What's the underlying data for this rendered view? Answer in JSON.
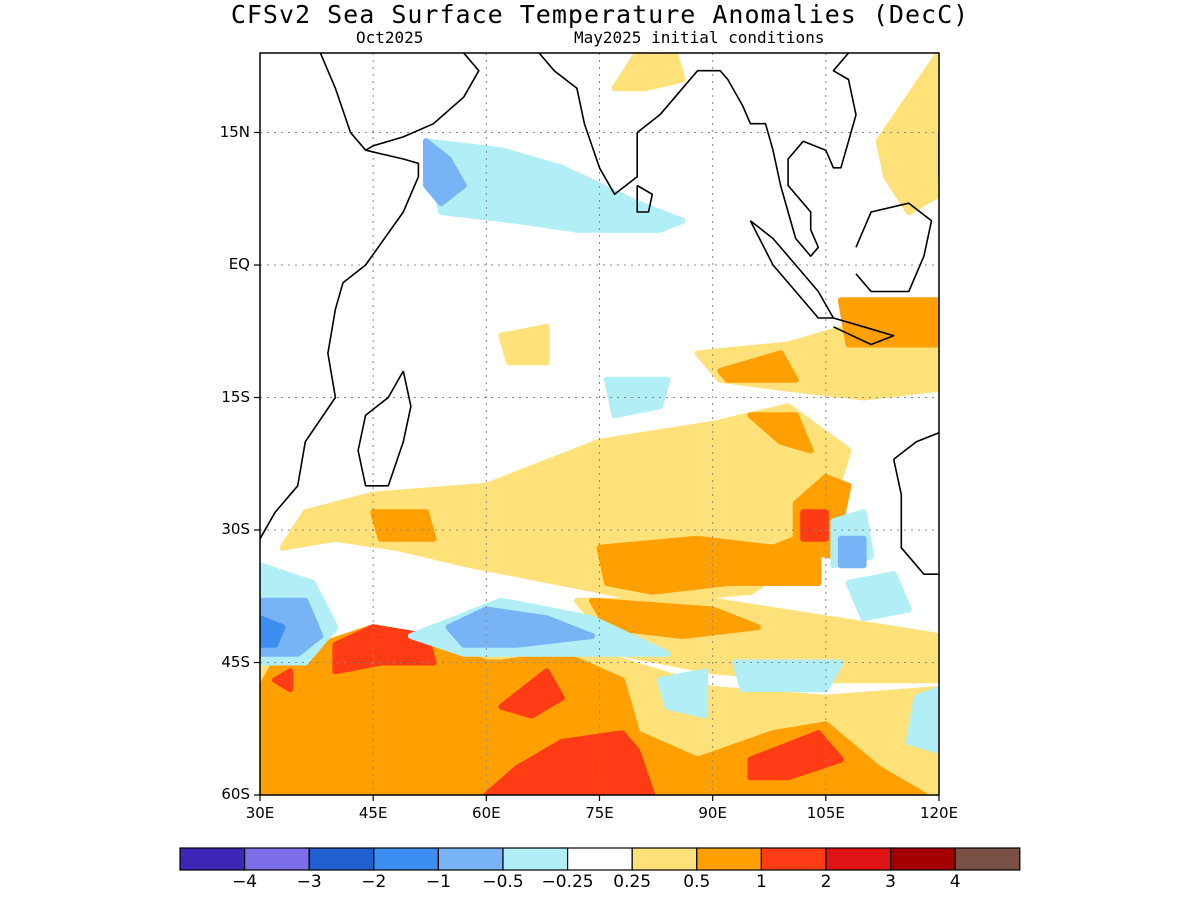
{
  "title": "CFSv2 Sea Surface Temperature Anomalies (DecC)",
  "subtitle_left": "Oct2025",
  "subtitle_right": "May2025 initial conditions",
  "lat_ticks": [
    {
      "label": "15N",
      "lat": 15
    },
    {
      "label": "EQ",
      "lat": 0
    },
    {
      "label": "15S",
      "lat": -15
    },
    {
      "label": "30S",
      "lat": -30
    },
    {
      "label": "45S",
      "lat": -45
    },
    {
      "label": "60S",
      "lat": -60
    }
  ],
  "lon_ticks": [
    {
      "label": "30E",
      "lon": 30
    },
    {
      "label": "45E",
      "lon": 45
    },
    {
      "label": "60E",
      "lon": 60
    },
    {
      "label": "75E",
      "lon": 75
    },
    {
      "label": "90E",
      "lon": 90
    },
    {
      "label": "105E",
      "lon": 105
    },
    {
      "label": "120E",
      "lon": 120
    }
  ],
  "map_extent": {
    "lon_min": 30,
    "lon_max": 120,
    "lat_min": -60,
    "lat_max": 24
  },
  "colorbar": {
    "colors": [
      "#3b26b5",
      "#7b6ee8",
      "#1f5fd0",
      "#3c8ff0",
      "#78b4f5",
      "#b2eef5",
      "#ffffff",
      "#ffe17a",
      "#ffa000",
      "#ff3c14",
      "#e01414",
      "#a50000",
      "#7a5046"
    ],
    "labels": [
      "−4",
      "−3",
      "−2",
      "−1",
      "−0.5",
      "−0.25",
      "0.25",
      "0.5",
      "1",
      "2",
      "3",
      "4"
    ]
  },
  "anomaly_regions": [
    {
      "level": "0.5",
      "color": "#ffe17a",
      "points": [
        [
          45,
          -26
        ],
        [
          60,
          -25
        ],
        [
          75,
          -20
        ],
        [
          90,
          -18
        ],
        [
          100,
          -16
        ],
        [
          108,
          -21
        ],
        [
          104,
          -32
        ],
        [
          95,
          -37
        ],
        [
          82,
          -38
        ],
        [
          70,
          -36
        ],
        [
          58,
          -34
        ],
        [
          48,
          -32
        ],
        [
          40,
          -31
        ],
        [
          33,
          -32
        ],
        [
          36,
          -28
        ]
      ]
    },
    {
      "level": "0.5",
      "color": "#ffe17a",
      "points": [
        [
          88,
          -10
        ],
        [
          100,
          -9
        ],
        [
          112,
          -6
        ],
        [
          120,
          -5
        ],
        [
          120,
          -14
        ],
        [
          110,
          -15
        ],
        [
          100,
          -14
        ],
        [
          91,
          -13
        ]
      ]
    },
    {
      "level": "0.5",
      "color": "#ffe17a",
      "points": [
        [
          112,
          14
        ],
        [
          120,
          24
        ],
        [
          120,
          8
        ],
        [
          116,
          6
        ],
        [
          113,
          10
        ]
      ]
    },
    {
      "level": "0.5",
      "color": "#ffe17a",
      "points": [
        [
          72,
          -38
        ],
        [
          90,
          -38
        ],
        [
          105,
          -40
        ],
        [
          120,
          -42
        ],
        [
          120,
          -47
        ],
        [
          105,
          -47
        ],
        [
          90,
          -46
        ],
        [
          78,
          -44
        ]
      ]
    },
    {
      "level": "0.5",
      "color": "#ffe17a",
      "points": [
        [
          30,
          -44
        ],
        [
          45,
          -42
        ],
        [
          60,
          -44
        ],
        [
          75,
          -44
        ],
        [
          90,
          -48
        ],
        [
          105,
          -49
        ],
        [
          120,
          -48
        ],
        [
          120,
          -60
        ],
        [
          30,
          -60
        ]
      ]
    },
    {
      "level": "0.5",
      "color": "#ffe17a",
      "points": [
        [
          62,
          -8
        ],
        [
          68,
          -7
        ],
        [
          68,
          -11
        ],
        [
          63,
          -11
        ]
      ]
    },
    {
      "level": "0.5",
      "color": "#ffe17a",
      "points": [
        [
          77,
          20
        ],
        [
          80,
          24
        ],
        [
          85,
          24
        ],
        [
          86,
          21
        ],
        [
          81,
          20
        ]
      ]
    },
    {
      "level": "1",
      "color": "#ffa000",
      "points": [
        [
          75,
          -32
        ],
        [
          88,
          -31
        ],
        [
          98,
          -32
        ],
        [
          104,
          -30
        ],
        [
          104,
          -36
        ],
        [
          92,
          -36
        ],
        [
          82,
          -37
        ],
        [
          76,
          -36
        ]
      ]
    },
    {
      "level": "1",
      "color": "#ffa000",
      "points": [
        [
          101,
          -27
        ],
        [
          105,
          -24
        ],
        [
          108,
          -25
        ],
        [
          106,
          -33
        ],
        [
          101,
          -32
        ]
      ]
    },
    {
      "level": "1",
      "color": "#ffa000",
      "points": [
        [
          95,
          -17
        ],
        [
          101,
          -17
        ],
        [
          103,
          -21
        ],
        [
          99,
          -20
        ]
      ]
    },
    {
      "level": "1",
      "color": "#ffa000",
      "points": [
        [
          91,
          -12
        ],
        [
          99,
          -10
        ],
        [
          101,
          -13
        ],
        [
          92,
          -13
        ]
      ]
    },
    {
      "level": "1",
      "color": "#ffa000",
      "points": [
        [
          107,
          -4
        ],
        [
          120,
          -4
        ],
        [
          120,
          -9
        ],
        [
          108,
          -9
        ]
      ]
    },
    {
      "level": "1",
      "color": "#ffa000",
      "points": [
        [
          45,
          -28
        ],
        [
          52,
          -28
        ],
        [
          53,
          -31
        ],
        [
          46,
          -31
        ]
      ]
    },
    {
      "level": "1",
      "color": "#ffa000",
      "points": [
        [
          74,
          -38
        ],
        [
          90,
          -39
        ],
        [
          96,
          -41
        ],
        [
          86,
          -42
        ],
        [
          76,
          -41
        ]
      ]
    },
    {
      "level": "1",
      "color": "#ffa000",
      "points": [
        [
          32,
          -45
        ],
        [
          38,
          -43
        ],
        [
          45,
          -41
        ],
        [
          54,
          -43
        ],
        [
          60,
          -45
        ],
        [
          62,
          -45
        ],
        [
          70,
          -44
        ],
        [
          78,
          -47
        ],
        [
          80,
          -53
        ],
        [
          88,
          -56
        ],
        [
          98,
          -53
        ],
        [
          105,
          -52
        ],
        [
          112,
          -57
        ],
        [
          118,
          -60
        ],
        [
          30,
          -60
        ],
        [
          30,
          -48
        ]
      ]
    },
    {
      "level": "2",
      "color": "#ff3c14",
      "points": [
        [
          40,
          -43
        ],
        [
          45,
          -41
        ],
        [
          52,
          -42
        ],
        [
          53,
          -45
        ],
        [
          46,
          -45
        ],
        [
          40,
          -46
        ]
      ]
    },
    {
      "level": "2",
      "color": "#ff3c14",
      "points": [
        [
          62,
          -50
        ],
        [
          68,
          -46
        ],
        [
          70,
          -49
        ],
        [
          66,
          -51
        ]
      ]
    },
    {
      "level": "2",
      "color": "#ff3c14",
      "points": [
        [
          70,
          -54
        ],
        [
          78,
          -53
        ],
        [
          80,
          -55
        ],
        [
          82,
          -60
        ],
        [
          60,
          -60
        ],
        [
          64,
          -57
        ]
      ]
    },
    {
      "level": "2",
      "color": "#ff3c14",
      "points": [
        [
          95,
          -56
        ],
        [
          104,
          -53
        ],
        [
          107,
          -56
        ],
        [
          100,
          -58
        ],
        [
          95,
          -58
        ]
      ]
    },
    {
      "level": "2",
      "color": "#ff3c14",
      "points": [
        [
          102,
          -28
        ],
        [
          105,
          -28
        ],
        [
          105,
          -31
        ],
        [
          102,
          -31
        ]
      ]
    },
    {
      "level": "2",
      "color": "#ff3c14",
      "points": [
        [
          32,
          -47
        ],
        [
          34,
          -46
        ],
        [
          34,
          -48
        ]
      ]
    },
    {
      "level": "-0.25",
      "color": "#b2eef5",
      "points": [
        [
          52,
          14
        ],
        [
          62,
          13
        ],
        [
          70,
          11
        ],
        [
          75,
          9
        ],
        [
          80,
          7
        ],
        [
          86,
          5
        ],
        [
          83,
          4
        ],
        [
          72,
          4
        ],
        [
          64,
          5
        ],
        [
          54,
          6
        ]
      ]
    },
    {
      "level": "-0.25",
      "color": "#b2eef5",
      "points": [
        [
          30,
          -34
        ],
        [
          37,
          -36
        ],
        [
          40,
          -41
        ],
        [
          36,
          -45
        ],
        [
          30,
          -45
        ]
      ]
    },
    {
      "level": "-0.25",
      "color": "#b2eef5",
      "points": [
        [
          50,
          -42
        ],
        [
          62,
          -38
        ],
        [
          74,
          -40
        ],
        [
          84,
          -44
        ],
        [
          70,
          -44
        ],
        [
          57,
          -44
        ]
      ]
    },
    {
      "level": "-0.25",
      "color": "#b2eef5",
      "points": [
        [
          76,
          -13
        ],
        [
          84,
          -13
        ],
        [
          83,
          -16
        ],
        [
          77,
          -17
        ]
      ]
    },
    {
      "level": "-0.25",
      "color": "#b2eef5",
      "points": [
        [
          106,
          -29
        ],
        [
          110,
          -28
        ],
        [
          111,
          -33
        ],
        [
          106,
          -34
        ]
      ]
    },
    {
      "level": "-0.25",
      "color": "#b2eef5",
      "points": [
        [
          108,
          -36
        ],
        [
          114,
          -35
        ],
        [
          116,
          -39
        ],
        [
          110,
          -40
        ]
      ]
    },
    {
      "level": "-0.25",
      "color": "#b2eef5",
      "points": [
        [
          83,
          -47
        ],
        [
          89,
          -46
        ],
        [
          89,
          -51
        ],
        [
          84,
          -50
        ]
      ]
    },
    {
      "level": "-0.25",
      "color": "#b2eef5",
      "points": [
        [
          117,
          -49
        ],
        [
          120,
          -48
        ],
        [
          120,
          -55
        ],
        [
          116,
          -54
        ]
      ]
    },
    {
      "level": "-0.25",
      "color": "#b2eef5",
      "points": [
        [
          93,
          -45
        ],
        [
          107,
          -45
        ],
        [
          105,
          -48
        ],
        [
          94,
          -48
        ]
      ]
    },
    {
      "level": "-0.5",
      "color": "#78b4f5",
      "points": [
        [
          52,
          14
        ],
        [
          55,
          12
        ],
        [
          57,
          9
        ],
        [
          54,
          7
        ],
        [
          52,
          9
        ]
      ]
    },
    {
      "level": "-0.5",
      "color": "#78b4f5",
      "points": [
        [
          30,
          -38
        ],
        [
          36,
          -38
        ],
        [
          38,
          -42
        ],
        [
          35,
          -44
        ],
        [
          30,
          -44
        ]
      ]
    },
    {
      "level": "-0.5",
      "color": "#78b4f5",
      "points": [
        [
          55,
          -41
        ],
        [
          60,
          -39
        ],
        [
          68,
          -40
        ],
        [
          74,
          -42
        ],
        [
          64,
          -43
        ],
        [
          57,
          -43
        ]
      ]
    },
    {
      "level": "-0.5",
      "color": "#78b4f5",
      "points": [
        [
          107,
          -31
        ],
        [
          110,
          -31
        ],
        [
          110,
          -34
        ],
        [
          107,
          -34
        ]
      ]
    },
    {
      "level": "-1",
      "color": "#3c8ff0",
      "points": [
        [
          30,
          -40
        ],
        [
          33,
          -41
        ],
        [
          32,
          -43
        ],
        [
          30,
          -43
        ]
      ]
    }
  ],
  "coastlines": [
    [
      [
        38,
        24
      ],
      [
        40,
        20
      ],
      [
        42,
        15
      ],
      [
        44,
        13
      ],
      [
        49,
        12
      ],
      [
        51,
        11.5
      ],
      [
        51,
        10
      ],
      [
        49,
        6
      ],
      [
        44,
        0
      ],
      [
        41,
        -2
      ],
      [
        40,
        -5
      ],
      [
        39,
        -10
      ],
      [
        40,
        -15
      ],
      [
        36,
        -20
      ],
      [
        35,
        -25
      ],
      [
        32,
        -28
      ],
      [
        30,
        -31
      ]
    ],
    [
      [
        44,
        13
      ],
      [
        45,
        13.5
      ],
      [
        49,
        14.5
      ],
      [
        53,
        16
      ],
      [
        55,
        17.5
      ],
      [
        57,
        19
      ],
      [
        59,
        22
      ],
      [
        57,
        24
      ]
    ],
    [
      [
        49,
        -12
      ],
      [
        50,
        -16
      ],
      [
        49,
        -20
      ],
      [
        47,
        -25
      ],
      [
        44,
        -25
      ],
      [
        43,
        -21
      ],
      [
        44,
        -17
      ],
      [
        47,
        -15
      ],
      [
        49,
        -12
      ]
    ],
    [
      [
        67,
        24
      ],
      [
        69,
        22
      ],
      [
        72,
        20
      ],
      [
        73,
        16
      ],
      [
        75,
        11
      ],
      [
        77,
        8
      ],
      [
        80,
        10
      ],
      [
        80,
        13
      ],
      [
        80,
        15
      ],
      [
        83,
        17
      ],
      [
        86,
        20
      ],
      [
        88,
        22
      ],
      [
        91,
        22
      ],
      [
        92,
        21
      ],
      [
        94,
        18
      ],
      [
        95,
        16
      ],
      [
        97,
        16
      ],
      [
        98,
        13
      ],
      [
        99,
        9
      ],
      [
        100,
        6
      ],
      [
        101,
        3
      ],
      [
        103,
        1
      ],
      [
        104,
        2
      ],
      [
        103,
        4
      ],
      [
        103,
        6
      ],
      [
        102,
        7
      ],
      [
        100,
        9
      ],
      [
        100,
        12
      ],
      [
        102,
        14
      ],
      [
        105,
        13
      ],
      [
        106,
        11
      ],
      [
        107,
        11
      ],
      [
        108,
        14
      ],
      [
        109,
        17
      ],
      [
        108,
        21
      ],
      [
        106,
        22
      ],
      [
        108,
        24
      ]
    ],
    [
      [
        80,
        9
      ],
      [
        82,
        8
      ],
      [
        81.5,
        6
      ],
      [
        80,
        6
      ],
      [
        80,
        9
      ]
    ],
    [
      [
        95,
        5
      ],
      [
        98,
        3
      ],
      [
        101,
        0
      ],
      [
        104,
        -3
      ],
      [
        106,
        -6
      ],
      [
        104,
        -6
      ],
      [
        101,
        -3
      ],
      [
        98,
        0
      ],
      [
        95,
        5
      ]
    ],
    [
      [
        106,
        -6
      ],
      [
        110,
        -7
      ],
      [
        114,
        -8
      ],
      [
        111,
        -9
      ],
      [
        106,
        -7
      ]
    ],
    [
      [
        109,
        2
      ],
      [
        111,
        6
      ],
      [
        116,
        7
      ],
      [
        119,
        5
      ],
      [
        118,
        1
      ],
      [
        116,
        -3
      ],
      [
        111,
        -3
      ],
      [
        109,
        -1
      ]
    ],
    [
      [
        114,
        -22
      ],
      [
        115,
        -26
      ],
      [
        115,
        -32
      ],
      [
        118,
        -35
      ],
      [
        120,
        -35
      ]
    ],
    [
      [
        114,
        -22
      ],
      [
        117,
        -20
      ],
      [
        120,
        -19
      ]
    ],
    [
      [
        120,
        15
      ],
      [
        120,
        10
      ],
      [
        120,
        14
      ]
    ]
  ]
}
